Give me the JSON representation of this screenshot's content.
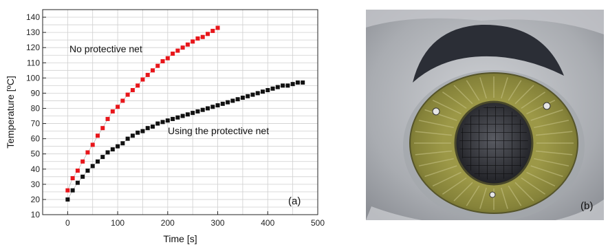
{
  "panels": {
    "a": {
      "label": "(a)"
    },
    "b": {
      "label": "(b)"
    }
  },
  "colors": {
    "no_net": "#e8161b",
    "with_net": "#111111",
    "grid": "#cfcfcf",
    "photo_bg": "#b9bbbf",
    "ring": "#8e8a3a"
  },
  "chart_data": {
    "type": "scatter",
    "xlabel": "Time [s]",
    "ylabel": "Temperature [ºC]",
    "xlim": [
      -50,
      500
    ],
    "ylim": [
      10,
      145
    ],
    "xticks": [
      0,
      100,
      200,
      300,
      400,
      500
    ],
    "yticks": [
      10,
      20,
      30,
      40,
      50,
      60,
      70,
      80,
      90,
      100,
      110,
      120,
      130,
      140
    ],
    "grid": true,
    "annotations": [
      "No protective net",
      "Using the protective net"
    ],
    "series": [
      {
        "x": [
          0,
          10,
          20,
          30,
          40,
          50,
          60,
          70,
          80,
          90,
          100,
          110,
          120,
          130,
          140,
          150,
          160,
          170,
          180,
          190,
          200,
          210,
          220,
          230,
          240,
          250,
          260,
          270,
          280,
          290,
          300
        ],
        "y": [
          26,
          34,
          39,
          45,
          51,
          56,
          62,
          67,
          73,
          78,
          81,
          85,
          89,
          92,
          95,
          99,
          102,
          105,
          108,
          111,
          113,
          116,
          118,
          120,
          122,
          124,
          126,
          127,
          129,
          131,
          133
        ]
      },
      {
        "x": [
          0,
          10,
          20,
          30,
          40,
          50,
          60,
          70,
          80,
          90,
          100,
          110,
          120,
          130,
          140,
          150,
          160,
          170,
          180,
          190,
          200,
          210,
          220,
          230,
          240,
          250,
          260,
          270,
          280,
          290,
          300,
          310,
          320,
          330,
          340,
          350,
          360,
          370,
          380,
          390,
          400,
          410,
          420,
          430,
          440,
          450,
          460,
          470
        ],
        "y": [
          20,
          26,
          31,
          35,
          39,
          42,
          45,
          48,
          51,
          53,
          55,
          57,
          60,
          62,
          64,
          65,
          67,
          68,
          70,
          71,
          72,
          73,
          74,
          75,
          76,
          77,
          78,
          79,
          80,
          81,
          82,
          83,
          84,
          85,
          86,
          87,
          88,
          89,
          90,
          91,
          92,
          93,
          94,
          95,
          95,
          96,
          97,
          97
        ]
      }
    ]
  }
}
